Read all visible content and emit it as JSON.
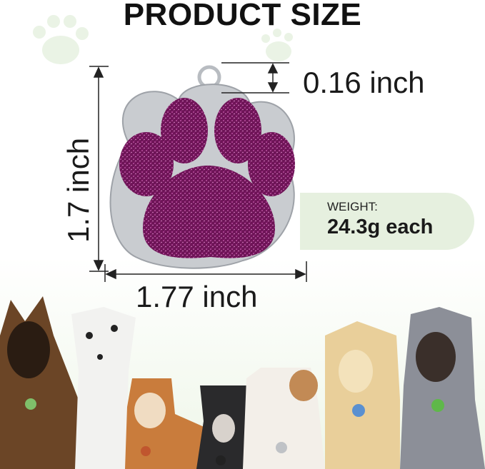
{
  "title": "PRODUCT SIZE",
  "dimensions": {
    "ring": "0.16 inch",
    "height": "1.7 inch",
    "width": "1.77 inch"
  },
  "weight": {
    "label": "WEIGHT:",
    "value": "24.3g each"
  },
  "colors": {
    "tag_glitter": "#8a1f6e",
    "tag_metal": "#c9ccd0",
    "panel": "#e6f0df"
  }
}
